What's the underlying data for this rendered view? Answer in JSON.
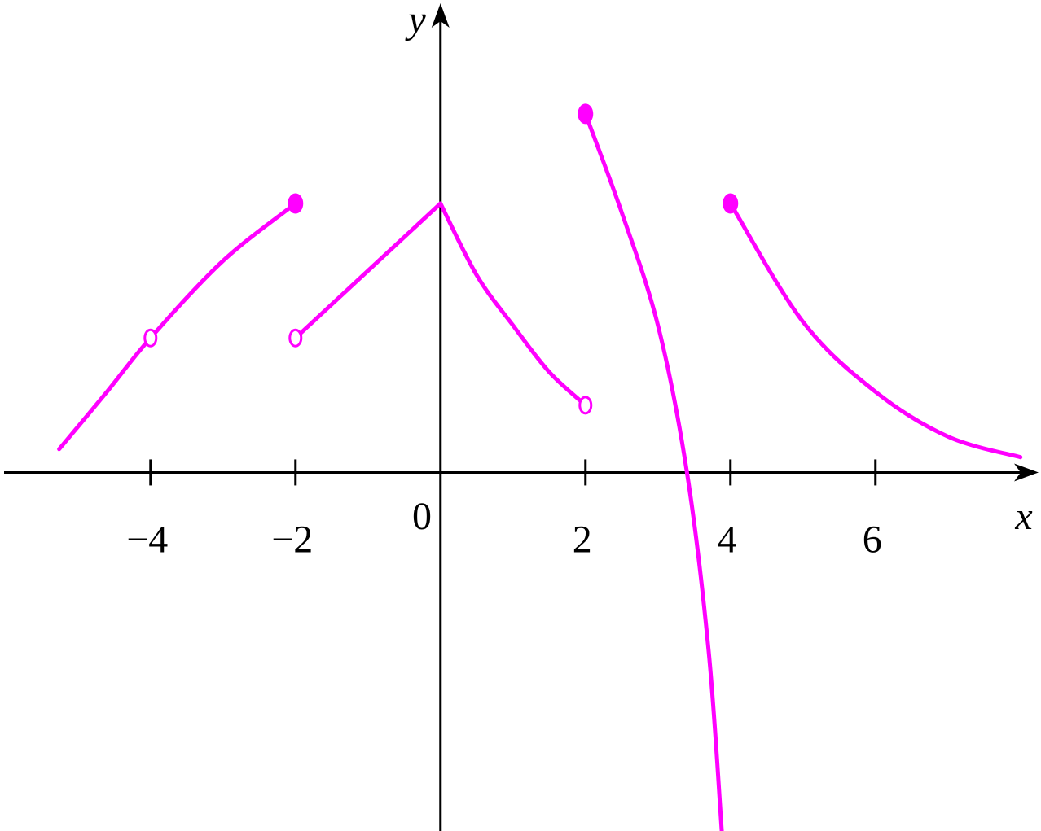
{
  "chart_data": {
    "type": "line",
    "x_label": "x",
    "y_label": "y",
    "origin_label": "0",
    "xlim": [
      -6.02,
      8.25
    ],
    "ylim": [
      -4.0,
      5.27
    ],
    "xticks": [
      {
        "value": -4,
        "label": "−4"
      },
      {
        "value": -2,
        "label": "−2"
      },
      2,
      4,
      6
    ],
    "color": "#ff00ff",
    "series": [
      {
        "x": [
          -5.26,
          -4.6,
          -4,
          -3,
          -2
        ],
        "values": [
          0.26,
          0.9,
          1.5,
          2.36,
          3
        ]
      },
      {
        "x": [
          -2,
          0
        ],
        "values": [
          1.5,
          3
        ]
      },
      {
        "x": [
          0,
          0.5,
          1,
          1.5,
          2
        ],
        "values": [
          3,
          2.2,
          1.64,
          1.12,
          0.75
        ]
      },
      {
        "x": [
          2,
          2.5,
          3,
          3.4,
          3.7,
          3.88
        ],
        "values": [
          4,
          2.9,
          1.64,
          0,
          -2,
          -4
        ]
      },
      {
        "x": [
          4,
          5,
          6,
          7,
          8
        ],
        "values": [
          3,
          1.68,
          0.9,
          0.4,
          0.17
        ]
      }
    ],
    "points": [
      {
        "x": -4,
        "y": 1.5,
        "filled": false
      },
      {
        "x": -2,
        "y": 1.5,
        "filled": false
      },
      {
        "x": 2,
        "y": 0.75,
        "filled": false
      },
      {
        "x": -2,
        "y": 3,
        "filled": true
      },
      {
        "x": 2,
        "y": 4,
        "filled": true
      },
      {
        "x": 4,
        "y": 3,
        "filled": true
      }
    ]
  }
}
